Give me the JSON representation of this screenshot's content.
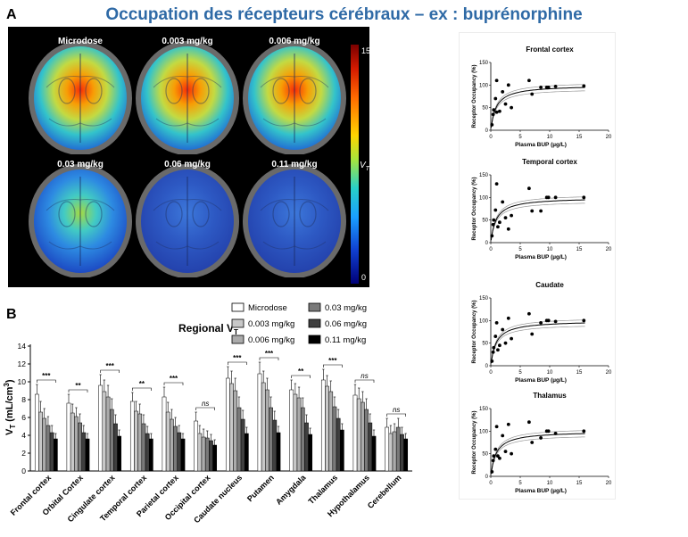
{
  "title": "Occupation des récepteurs cérébraux – ex : buprénorphine",
  "panel_a_letter": "A",
  "panel_b_letter": "B",
  "brain_images": {
    "labels": [
      "Microdose",
      "0.003 mg/kg",
      "0.006 mg/kg",
      "0.03 mg/kg",
      "0.06 mg/kg",
      "0.11 mg/kg"
    ],
    "activation": [
      0.88,
      0.78,
      0.68,
      0.38,
      0.18,
      0.14
    ],
    "colorbar_max": "15",
    "colorbar_min": "0",
    "colorbar_label": "V",
    "colorbar_label_sub": "T"
  },
  "chart_data": [
    {
      "type": "bar",
      "title": "Regional V",
      "title_sub": "T",
      "ylabel": "V",
      "ylabel_sub": "T",
      "ylabel_rest": " (mL/cm",
      "ylabel_sup": "3",
      "ylabel_end": ")",
      "ylim": [
        0,
        14
      ],
      "yticks": [
        "0",
        "2",
        "4",
        "6",
        "8",
        "10",
        "12",
        "14"
      ],
      "legend_placement": "top-right",
      "categories": [
        "Frontal cortex",
        "Orbital Cortex",
        "Cingulate cortex",
        "Temporal cortex",
        "Parietal cortex",
        "Occipital cortex",
        "Caudate nucleus",
        "Putamen",
        "Amygdala",
        "Thalamus",
        "Hypothalamus",
        "Cerebellum"
      ],
      "significance": [
        "***",
        "**",
        "***",
        "**",
        "***",
        "ns",
        "***",
        "***",
        "**",
        "***",
        "ns",
        "ns"
      ],
      "series": [
        {
          "name": "Microdose",
          "color": "#ffffff",
          "values": [
            8.6,
            7.6,
            9.6,
            7.8,
            8.3,
            5.6,
            10.4,
            10.9,
            9.1,
            10.2,
            8.5,
            4.9
          ],
          "errors": [
            1.1,
            1.0,
            1.2,
            1.0,
            1.1,
            1.0,
            1.3,
            1.3,
            1.1,
            1.2,
            1.2,
            1.0
          ]
        },
        {
          "name": "0.003 mg/kg",
          "color": "#c8c8c8",
          "values": [
            6.6,
            6.5,
            8.9,
            6.7,
            6.6,
            4.2,
            9.8,
            9.9,
            8.6,
            9.5,
            8.1,
            4.2
          ],
          "errors": [
            1.2,
            1.0,
            1.3,
            1.1,
            1.1,
            0.9,
            1.4,
            1.3,
            1.2,
            1.2,
            1.2,
            0.9
          ]
        },
        {
          "name": "0.006 mg/kg",
          "color": "#ababab",
          "values": [
            5.9,
            6.1,
            8.3,
            6.4,
            5.8,
            3.8,
            9.0,
            9.1,
            8.2,
            8.9,
            7.7,
            4.4
          ],
          "errors": [
            1.1,
            1.0,
            1.3,
            1.1,
            1.1,
            0.9,
            1.4,
            1.3,
            1.2,
            1.2,
            1.2,
            0.9
          ]
        },
        {
          "name": "0.03 mg/kg",
          "color": "#7a7a7a",
          "values": [
            5.1,
            5.4,
            6.9,
            5.3,
            5.0,
            3.7,
            7.1,
            7.1,
            7.1,
            7.2,
            6.9,
            4.9
          ],
          "errors": [
            1.0,
            1.0,
            1.2,
            1.0,
            1.0,
            0.8,
            1.2,
            1.2,
            1.1,
            1.1,
            1.2,
            1.0
          ]
        },
        {
          "name": "0.06 mg/kg",
          "color": "#3f3f3f",
          "values": [
            4.3,
            4.3,
            5.3,
            4.2,
            4.3,
            3.4,
            5.8,
            5.7,
            5.4,
            5.9,
            5.4,
            4.1
          ],
          "errors": [
            0.8,
            0.8,
            1.0,
            0.8,
            0.8,
            0.7,
            1.0,
            1.0,
            0.9,
            1.0,
            1.0,
            0.8
          ]
        },
        {
          "name": "0.11 mg/kg",
          "color": "#000000",
          "values": [
            3.6,
            3.6,
            3.9,
            3.6,
            3.6,
            2.9,
            4.2,
            4.3,
            4.1,
            4.6,
            3.9,
            3.6
          ],
          "errors": [
            0.6,
            0.6,
            0.7,
            0.6,
            0.6,
            0.6,
            0.7,
            0.7,
            0.7,
            0.7,
            0.7,
            0.6
          ]
        }
      ]
    },
    {
      "type": "scatter",
      "title": "Frontal cortex",
      "xlabel": "Plasma BUP (µg/L)",
      "ylabel": "Receptor Occupancy (%)",
      "xlim": [
        0,
        20
      ],
      "ylim": [
        0,
        150
      ],
      "xticks": [
        "0",
        "5",
        "10",
        "15",
        "20"
      ],
      "yticks": [
        "0",
        "50",
        "100",
        "150"
      ],
      "points": [
        [
          0.2,
          12
        ],
        [
          0.4,
          35
        ],
        [
          0.5,
          45
        ],
        [
          0.8,
          70
        ],
        [
          1.0,
          110
        ],
        [
          1.0,
          40
        ],
        [
          1.5,
          42
        ],
        [
          2.0,
          85
        ],
        [
          2.5,
          58
        ],
        [
          3.0,
          100
        ],
        [
          3.5,
          50
        ],
        [
          6.5,
          110
        ],
        [
          7.0,
          80
        ],
        [
          8.5,
          95
        ],
        [
          9.5,
          95
        ],
        [
          9.8,
          95
        ],
        [
          11,
          97
        ],
        [
          15.8,
          98
        ]
      ],
      "fit_emax": 100,
      "fit_ec50": 0.9,
      "ci_low_emax": 92,
      "ci_high_emax": 107
    },
    {
      "type": "scatter",
      "title": "Temporal cortex",
      "xlabel": "Plasma BUP (µg/L)",
      "ylabel": "Receptor Occupancy (%)",
      "xlim": [
        0,
        20
      ],
      "ylim": [
        0,
        150
      ],
      "xticks": [
        "0",
        "5",
        "10",
        "15",
        "20"
      ],
      "yticks": [
        "0",
        "50",
        "100",
        "150"
      ],
      "points": [
        [
          0.2,
          15
        ],
        [
          0.4,
          40
        ],
        [
          0.5,
          50
        ],
        [
          0.8,
          72
        ],
        [
          1.0,
          130
        ],
        [
          1.2,
          35
        ],
        [
          1.5,
          45
        ],
        [
          2.0,
          90
        ],
        [
          2.5,
          55
        ],
        [
          3.0,
          30
        ],
        [
          3.5,
          60
        ],
        [
          6.5,
          120
        ],
        [
          7.0,
          70
        ],
        [
          8.5,
          70
        ],
        [
          9.5,
          100
        ],
        [
          9.8,
          100
        ],
        [
          11,
          100
        ],
        [
          15.8,
          100
        ]
      ],
      "fit_emax": 100,
      "fit_ec50": 0.9,
      "ci_low_emax": 92,
      "ci_high_emax": 107
    },
    {
      "type": "scatter",
      "title": "Caudate",
      "xlabel": "Plasma BUP (µg/L)",
      "ylabel": "Receptor Occupancy (%)",
      "xlim": [
        0,
        20
      ],
      "ylim": [
        0,
        150
      ],
      "xticks": [
        "0",
        "5",
        "10",
        "15",
        "20"
      ],
      "yticks": [
        "0",
        "50",
        "100",
        "150"
      ],
      "points": [
        [
          0.2,
          10
        ],
        [
          0.4,
          30
        ],
        [
          0.5,
          40
        ],
        [
          0.8,
          65
        ],
        [
          1.0,
          95
        ],
        [
          1.2,
          35
        ],
        [
          1.5,
          45
        ],
        [
          2.0,
          80
        ],
        [
          2.5,
          50
        ],
        [
          3.0,
          105
        ],
        [
          3.5,
          60
        ],
        [
          6.5,
          115
        ],
        [
          7.0,
          70
        ],
        [
          8.5,
          95
        ],
        [
          9.5,
          100
        ],
        [
          9.8,
          100
        ],
        [
          11,
          98
        ],
        [
          15.8,
          100
        ]
      ],
      "fit_emax": 100,
      "fit_ec50": 0.9,
      "ci_low_emax": 92,
      "ci_high_emax": 107
    },
    {
      "type": "scatter",
      "title": "Thalamus",
      "xlabel": "Plasma BUP (µg/L)",
      "ylabel": "Receptor Occupancy (%)",
      "xlim": [
        0,
        20
      ],
      "ylim": [
        0,
        150
      ],
      "xticks": [
        "0",
        "5",
        "10",
        "15",
        "20"
      ],
      "yticks": [
        "0",
        "50",
        "100",
        "150"
      ],
      "points": [
        [
          0.2,
          10
        ],
        [
          0.4,
          35
        ],
        [
          0.5,
          45
        ],
        [
          0.8,
          60
        ],
        [
          1.0,
          110
        ],
        [
          1.2,
          45
        ],
        [
          1.5,
          40
        ],
        [
          2.0,
          90
        ],
        [
          2.5,
          55
        ],
        [
          3.0,
          115
        ],
        [
          3.5,
          50
        ],
        [
          6.5,
          120
        ],
        [
          7.0,
          75
        ],
        [
          8.5,
          85
        ],
        [
          9.5,
          100
        ],
        [
          9.8,
          100
        ],
        [
          11,
          95
        ],
        [
          15.8,
          100
        ]
      ],
      "fit_emax": 100,
      "fit_ec50": 0.9,
      "ci_low_emax": 92,
      "ci_high_emax": 107
    }
  ]
}
